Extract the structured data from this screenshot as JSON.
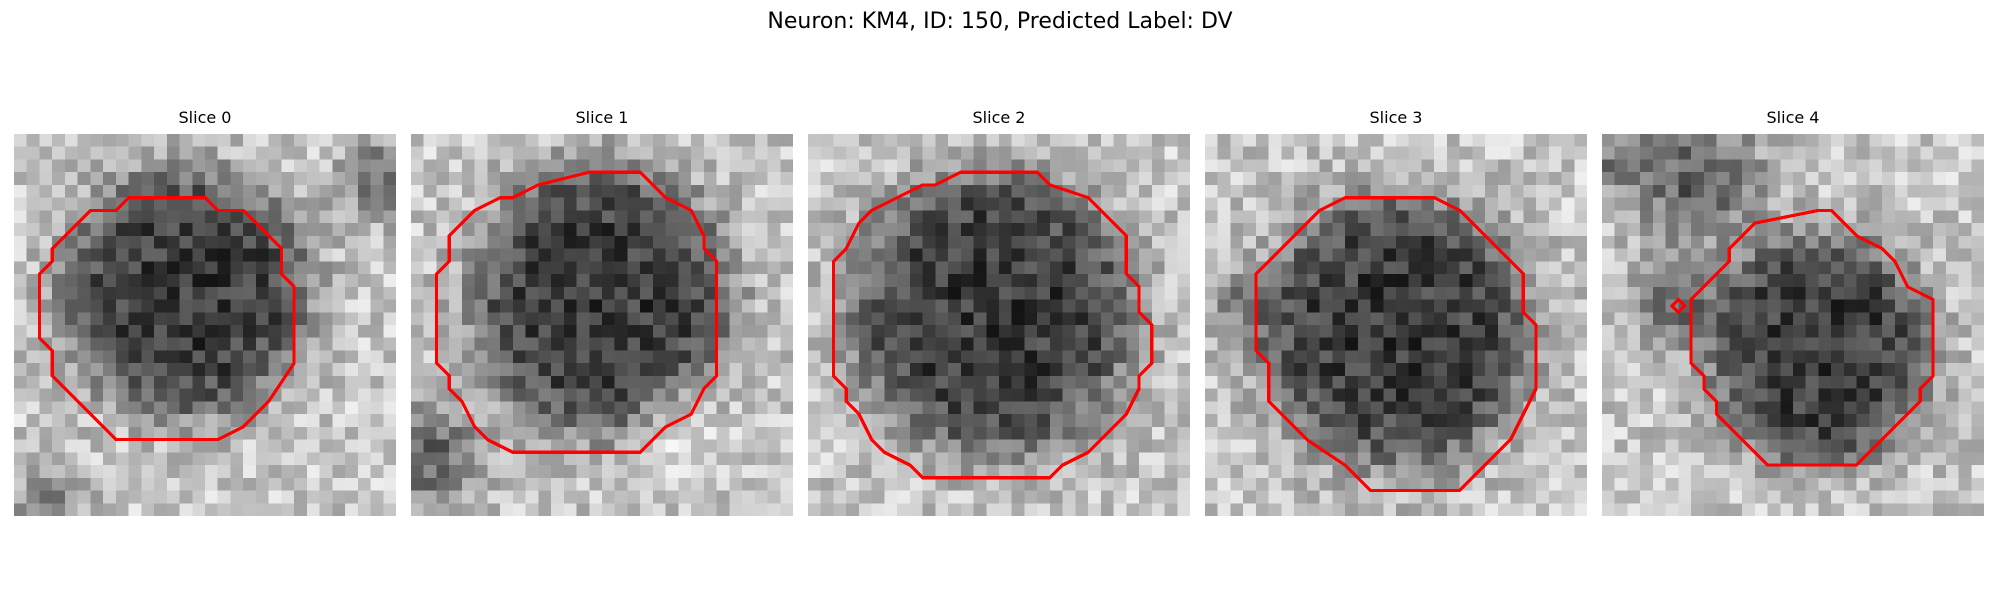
{
  "figure": {
    "title": "Neuron: KM4, ID: 150, Predicted Label: DV",
    "colormap": "grayscale",
    "contour_color": "#ff0000"
  },
  "slices": [
    {
      "title": "Slice 0"
    },
    {
      "title": "Slice 1"
    },
    {
      "title": "Slice 2"
    },
    {
      "title": "Slice 3"
    },
    {
      "title": "Slice 4"
    }
  ]
}
